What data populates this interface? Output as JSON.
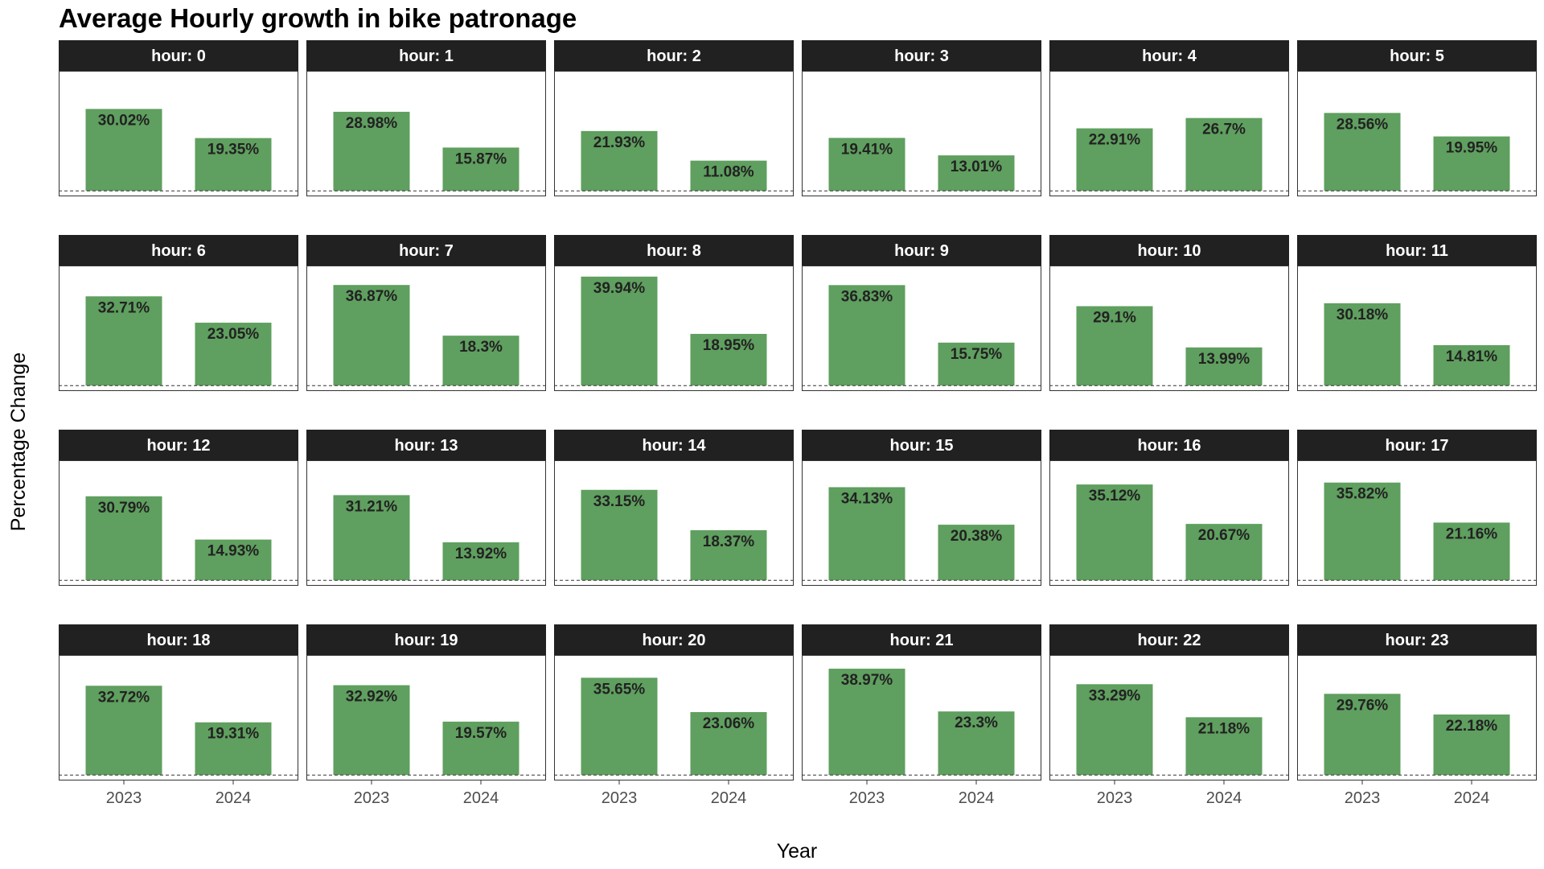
{
  "chart_data": {
    "type": "bar",
    "title": "Average Hourly growth in bike patronage",
    "xlabel": "Year",
    "ylabel": "Percentage Change",
    "categories": [
      "2023",
      "2024"
    ],
    "facet_label_prefix": "hour: ",
    "facet_layout": "4 rows x 6 columns",
    "ylim": [
      -2,
      44
    ],
    "reference_line": 0,
    "bar_color": "#5f9f5f",
    "strip_color": "#212121",
    "grid": false,
    "facets": [
      {
        "hour": "0",
        "values": [
          30.02,
          19.35
        ],
        "labels": [
          "30.02%",
          "19.35%"
        ]
      },
      {
        "hour": "1",
        "values": [
          28.98,
          15.87
        ],
        "labels": [
          "28.98%",
          "15.87%"
        ]
      },
      {
        "hour": "2",
        "values": [
          21.93,
          11.08
        ],
        "labels": [
          "21.93%",
          "11.08%"
        ]
      },
      {
        "hour": "3",
        "values": [
          19.41,
          13.01
        ],
        "labels": [
          "19.41%",
          "13.01%"
        ]
      },
      {
        "hour": "4",
        "values": [
          22.91,
          26.7
        ],
        "labels": [
          "22.91%",
          "26.7%"
        ]
      },
      {
        "hour": "5",
        "values": [
          28.56,
          19.95
        ],
        "labels": [
          "28.56%",
          "19.95%"
        ]
      },
      {
        "hour": "6",
        "values": [
          32.71,
          23.05
        ],
        "labels": [
          "32.71%",
          "23.05%"
        ]
      },
      {
        "hour": "7",
        "values": [
          36.87,
          18.3
        ],
        "labels": [
          "36.87%",
          "18.3%"
        ]
      },
      {
        "hour": "8",
        "values": [
          39.94,
          18.95
        ],
        "labels": [
          "39.94%",
          "18.95%"
        ]
      },
      {
        "hour": "9",
        "values": [
          36.83,
          15.75
        ],
        "labels": [
          "36.83%",
          "15.75%"
        ]
      },
      {
        "hour": "10",
        "values": [
          29.1,
          13.99
        ],
        "labels": [
          "29.1%",
          "13.99%"
        ]
      },
      {
        "hour": "11",
        "values": [
          30.18,
          14.81
        ],
        "labels": [
          "30.18%",
          "14.81%"
        ]
      },
      {
        "hour": "12",
        "values": [
          30.79,
          14.93
        ],
        "labels": [
          "30.79%",
          "14.93%"
        ]
      },
      {
        "hour": "13",
        "values": [
          31.21,
          13.92
        ],
        "labels": [
          "31.21%",
          "13.92%"
        ]
      },
      {
        "hour": "14",
        "values": [
          33.15,
          18.37
        ],
        "labels": [
          "33.15%",
          "18.37%"
        ]
      },
      {
        "hour": "15",
        "values": [
          34.13,
          20.38
        ],
        "labels": [
          "34.13%",
          "20.38%"
        ]
      },
      {
        "hour": "16",
        "values": [
          35.12,
          20.67
        ],
        "labels": [
          "35.12%",
          "20.67%"
        ]
      },
      {
        "hour": "17",
        "values": [
          35.82,
          21.16
        ],
        "labels": [
          "35.82%",
          "21.16%"
        ]
      },
      {
        "hour": "18",
        "values": [
          32.72,
          19.31
        ],
        "labels": [
          "32.72%",
          "19.31%"
        ]
      },
      {
        "hour": "19",
        "values": [
          32.92,
          19.57
        ],
        "labels": [
          "32.92%",
          "19.57%"
        ]
      },
      {
        "hour": "20",
        "values": [
          35.65,
          23.06
        ],
        "labels": [
          "35.65%",
          "23.06%"
        ]
      },
      {
        "hour": "21",
        "values": [
          38.97,
          23.3
        ],
        "labels": [
          "38.97%",
          "23.3%"
        ]
      },
      {
        "hour": "22",
        "values": [
          33.29,
          21.18
        ],
        "labels": [
          "33.29%",
          "21.18%"
        ]
      },
      {
        "hour": "23",
        "values": [
          29.76,
          22.18
        ],
        "labels": [
          "29.76%",
          "22.18%"
        ]
      }
    ]
  }
}
